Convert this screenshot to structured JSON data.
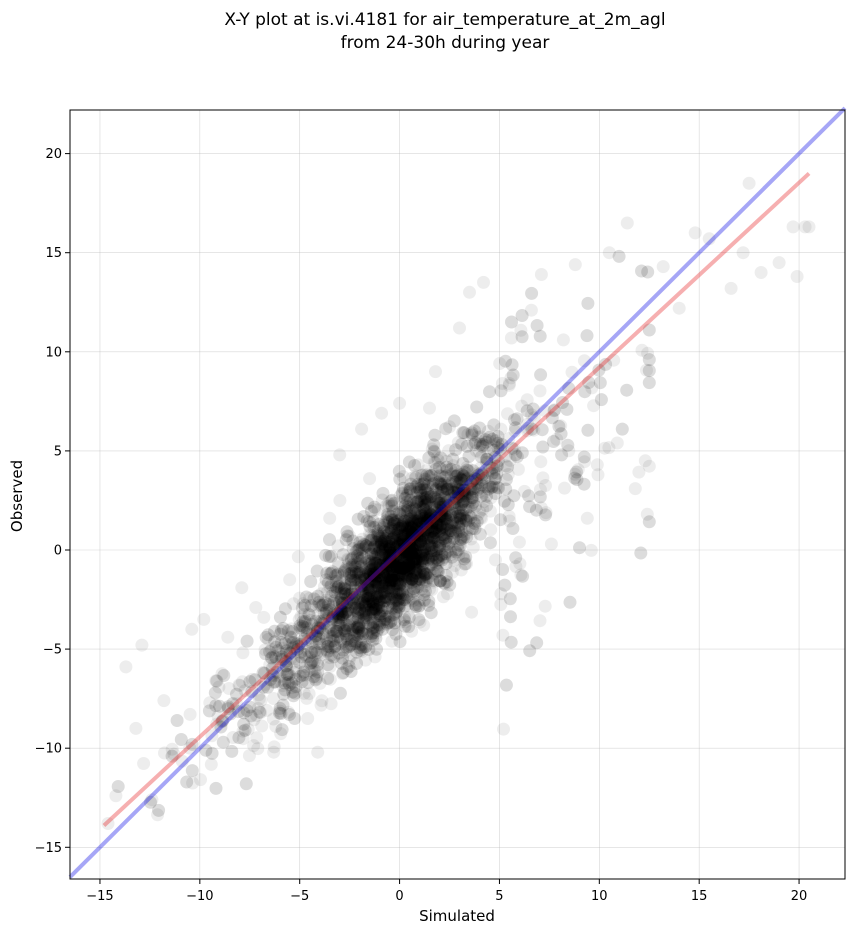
{
  "chart_data": {
    "type": "scatter",
    "title": "X-Y plot at is.vi.4181 for air_temperature_at_2m_agl",
    "subtitle": "from 24-30h during year",
    "xlabel": "Simulated",
    "ylabel": "Observed",
    "xlim": [
      -16.5,
      22.3
    ],
    "ylim": [
      -16.6,
      22.2
    ],
    "xticks": [
      -15,
      -10,
      -5,
      0,
      5,
      10,
      15,
      20
    ],
    "yticks": [
      -15,
      -10,
      -5,
      0,
      5,
      10,
      15,
      20
    ],
    "xtick_labels": [
      "−15",
      "−10",
      "−5",
      "0",
      "5",
      "10",
      "15",
      "20"
    ],
    "ytick_labels": [
      "−15",
      "−10",
      "−5",
      "0",
      "5",
      "10",
      "15",
      "20"
    ],
    "grid": true,
    "series": [
      {
        "color": "#000000",
        "opacity": 0.07,
        "approx_count": 4000,
        "points": [
          [
            -14.6,
            -13.8
          ],
          [
            -14.2,
            -12.4
          ],
          [
            -13.7,
            -5.9
          ],
          [
            -13.2,
            -9.0
          ],
          [
            -12.9,
            -4.8
          ],
          [
            -12.4,
            -12.6
          ],
          [
            -11.8,
            -7.6
          ],
          [
            -11.3,
            -10.3
          ],
          [
            -10.4,
            -4.0
          ],
          [
            -9.8,
            -3.5
          ],
          [
            -9.2,
            -6.6
          ],
          [
            -8.6,
            -4.4
          ],
          [
            -7.9,
            -1.9
          ],
          [
            -7.2,
            -2.9
          ],
          [
            -6.8,
            -3.4
          ],
          [
            -6.3,
            -10.2
          ],
          [
            -5.5,
            -1.5
          ],
          [
            -4.6,
            -8.5
          ],
          [
            -4.1,
            -10.2
          ],
          [
            -3.5,
            1.6
          ],
          [
            -3.0,
            4.8
          ],
          [
            -2.5,
            0.7
          ],
          [
            -1.9,
            6.1
          ],
          [
            -1.5,
            3.6
          ],
          [
            -0.9,
            6.9
          ],
          [
            -0.4,
            2.3
          ],
          [
            0.0,
            7.4
          ],
          [
            0.6,
            -4.1
          ],
          [
            1.2,
            3.8
          ],
          [
            1.8,
            9.0
          ],
          [
            2.4,
            -2.2
          ],
          [
            3.0,
            11.2
          ],
          [
            3.5,
            13.0
          ],
          [
            4.2,
            13.5
          ],
          [
            4.8,
            -0.5
          ],
          [
            5.5,
            8.4
          ],
          [
            6.0,
            0.4
          ],
          [
            6.6,
            12.1
          ],
          [
            7.1,
            13.9
          ],
          [
            7.6,
            0.3
          ],
          [
            8.2,
            10.6
          ],
          [
            8.8,
            14.4
          ],
          [
            9.4,
            1.6
          ],
          [
            9.9,
            4.3
          ],
          [
            10.5,
            15.0
          ],
          [
            10.9,
            5.4
          ],
          [
            11.4,
            16.5
          ],
          [
            11.8,
            3.1
          ],
          [
            12.3,
            4.5
          ],
          [
            12.4,
            1.8
          ],
          [
            13.2,
            14.3
          ],
          [
            14.0,
            12.2
          ],
          [
            14.8,
            16.0
          ],
          [
            15.5,
            15.7
          ],
          [
            16.6,
            13.2
          ],
          [
            17.2,
            15.0
          ],
          [
            17.5,
            18.5
          ],
          [
            18.1,
            14.0
          ],
          [
            19.0,
            14.5
          ],
          [
            19.7,
            16.3
          ],
          [
            19.9,
            13.8
          ],
          [
            20.3,
            16.3
          ],
          [
            20.5,
            16.3
          ]
        ]
      }
    ],
    "lines": [
      {
        "color": "#e41a1c",
        "points": [
          [
            -14.8,
            -13.9
          ],
          [
            20.5,
            19.0
          ]
        ]
      },
      {
        "color": "#0000e6",
        "points": [
          [
            -16.5,
            -16.5
          ],
          [
            22.3,
            22.3
          ]
        ]
      }
    ]
  }
}
